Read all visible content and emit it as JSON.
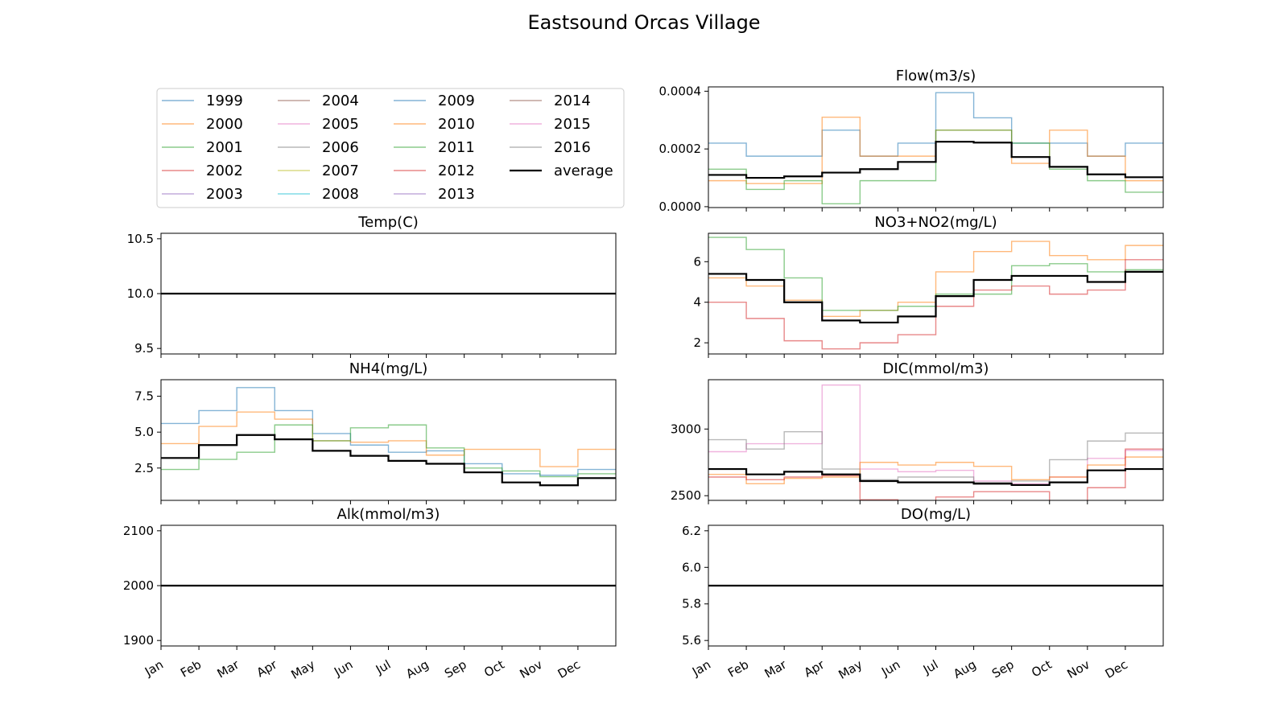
{
  "figure": {
    "title": "Eastsound Orcas Village"
  },
  "legend": {
    "entries": [
      {
        "name": "1999",
        "color": "#1f77b4"
      },
      {
        "name": "2000",
        "color": "#ff7f0e"
      },
      {
        "name": "2001",
        "color": "#2ca02c"
      },
      {
        "name": "2002",
        "color": "#d62728"
      },
      {
        "name": "2003",
        "color": "#9467bd"
      },
      {
        "name": "2004",
        "color": "#8c564b"
      },
      {
        "name": "2005",
        "color": "#e377c2"
      },
      {
        "name": "2006",
        "color": "#7f7f7f"
      },
      {
        "name": "2007",
        "color": "#bcbd22"
      },
      {
        "name": "2008",
        "color": "#17becf"
      },
      {
        "name": "2009",
        "color": "#1f77b4"
      },
      {
        "name": "2010",
        "color": "#ff7f0e"
      },
      {
        "name": "2011",
        "color": "#2ca02c"
      },
      {
        "name": "2012",
        "color": "#d62728"
      },
      {
        "name": "2013",
        "color": "#9467bd"
      },
      {
        "name": "2014",
        "color": "#8c564b"
      },
      {
        "name": "2015",
        "color": "#e377c2"
      },
      {
        "name": "2016",
        "color": "#7f7f7f"
      },
      {
        "name": "average",
        "color": "#000000"
      }
    ]
  },
  "chart_data": [
    {
      "type": "line",
      "step": "post",
      "title": "Temp(C)",
      "categories": [
        "Jan",
        "Feb",
        "Mar",
        "Apr",
        "May",
        "Jun",
        "Jul",
        "Aug",
        "Sep",
        "Oct",
        "Nov",
        "Dec"
      ],
      "ylim": [
        9.45,
        10.55
      ],
      "yticks": [
        9.5,
        10.0,
        10.5
      ],
      "ytick_labels": [
        "9.5",
        "10.0",
        "10.5"
      ],
      "x_labels_visible": false,
      "constant": 10.0,
      "average": [
        10,
        10,
        10,
        10,
        10,
        10,
        10,
        10,
        10,
        10,
        10,
        10
      ]
    },
    {
      "type": "line",
      "step": "post",
      "title": "Flow(m3/s)",
      "categories": [
        "Jan",
        "Feb",
        "Mar",
        "Apr",
        "May",
        "Jun",
        "Jul",
        "Aug",
        "Sep",
        "Oct",
        "Nov",
        "Dec"
      ],
      "ylim": [
        -3e-06,
        0.000415
      ],
      "yticks": [
        0.0,
        0.0002,
        0.0004
      ],
      "ytick_labels": [
        "0.0000",
        "0.0002",
        "0.0004"
      ],
      "x_labels_visible": false,
      "average": [
        0.00011,
        0.0001,
        0.000105,
        0.000118,
        0.00013,
        0.000155,
        0.000225,
        0.000222,
        0.000172,
        0.000138,
        0.000112,
        0.000102
      ],
      "series": [
        {
          "name": "1999",
          "values": [
            0.00022,
            0.000175,
            0.000175,
            0.000265,
            0.000175,
            0.00022,
            0.000395,
            0.000308,
            0.00022,
            0.00022,
            0.000175,
            0.00022
          ]
        },
        {
          "name": "2000",
          "values": [
            9e-05,
            8e-05,
            8e-05,
            0.00031,
            0.000175,
            0.000175,
            0.000265,
            0.000265,
            0.00015,
            0.000265,
            0.000175,
            9e-05
          ]
        },
        {
          "name": "2001",
          "values": [
            0.00013,
            6e-05,
            9e-05,
            1e-05,
            9e-05,
            9e-05,
            0.000265,
            0.000265,
            0.00022,
            0.00013,
            9e-05,
            5e-05
          ]
        }
      ]
    },
    {
      "type": "line",
      "step": "post",
      "title": "NH4(mg/L)",
      "categories": [
        "Jan",
        "Feb",
        "Mar",
        "Apr",
        "May",
        "Jun",
        "Jul",
        "Aug",
        "Sep",
        "Oct",
        "Nov",
        "Dec"
      ],
      "ylim": [
        0.25,
        8.65
      ],
      "yticks": [
        2.5,
        5.0,
        7.5
      ],
      "ytick_labels": [
        "2.5",
        "5.0",
        "7.5"
      ],
      "x_labels_visible": false,
      "average": [
        3.2,
        4.1,
        4.8,
        4.5,
        3.7,
        3.35,
        3.0,
        2.8,
        2.2,
        1.5,
        1.3,
        1.8
      ],
      "series": [
        {
          "name": "1999",
          "values": [
            5.6,
            6.5,
            8.1,
            6.5,
            4.9,
            4.1,
            3.6,
            3.7,
            2.8,
            2.1,
            2.0,
            2.4
          ]
        },
        {
          "name": "2000",
          "values": [
            4.2,
            5.4,
            6.4,
            5.9,
            4.4,
            4.3,
            4.4,
            3.4,
            3.8,
            3.8,
            2.6,
            3.8
          ]
        },
        {
          "name": "2001",
          "values": [
            2.4,
            3.1,
            3.6,
            5.5,
            4.4,
            5.3,
            5.5,
            3.9,
            2.5,
            2.3,
            1.9,
            2.1
          ]
        }
      ]
    },
    {
      "type": "line",
      "step": "post",
      "title": "NO3+NO2(mg/L)",
      "categories": [
        "Jan",
        "Feb",
        "Mar",
        "Apr",
        "May",
        "Jun",
        "Jul",
        "Aug",
        "Sep",
        "Oct",
        "Nov",
        "Dec"
      ],
      "ylim": [
        1.45,
        7.4
      ],
      "yticks": [
        2,
        4,
        6
      ],
      "ytick_labels": [
        "2",
        "4",
        "6"
      ],
      "x_labels_visible": false,
      "average": [
        5.4,
        5.1,
        4.0,
        3.1,
        3.0,
        3.3,
        4.3,
        5.1,
        5.3,
        5.3,
        5.0,
        5.5
      ],
      "series": [
        {
          "name": "2000",
          "values": [
            5.2,
            4.8,
            4.1,
            3.3,
            3.6,
            4.0,
            5.5,
            6.5,
            7.0,
            6.3,
            6.1,
            6.8
          ]
        },
        {
          "name": "2001",
          "values": [
            7.2,
            6.6,
            5.2,
            3.6,
            3.6,
            3.8,
            4.4,
            4.4,
            5.8,
            5.9,
            5.5,
            5.6
          ]
        },
        {
          "name": "2002",
          "values": [
            4.0,
            3.2,
            2.1,
            1.7,
            2.0,
            2.4,
            3.8,
            4.6,
            4.8,
            4.4,
            4.6,
            6.1
          ]
        }
      ]
    },
    {
      "type": "line",
      "step": "post",
      "title": "DIC(mmol/m3)",
      "categories": [
        "Jan",
        "Feb",
        "Mar",
        "Apr",
        "May",
        "Jun",
        "Jul",
        "Aug",
        "Sep",
        "Oct",
        "Nov",
        "Dec"
      ],
      "ylim": [
        2465,
        3370
      ],
      "yticks": [
        2500,
        3000
      ],
      "ytick_labels": [
        "2500",
        "3000"
      ],
      "x_labels_visible": false,
      "average": [
        2700,
        2660,
        2680,
        2660,
        2610,
        2600,
        2600,
        2590,
        2580,
        2600,
        2690,
        2700
      ],
      "series": [
        {
          "name": "2005",
          "values": [
            2830,
            2890,
            2890,
            3330,
            2700,
            2680,
            2690,
            2610,
            2590,
            2640,
            2780,
            2840
          ]
        },
        {
          "name": "2006",
          "values": [
            2920,
            2850,
            2980,
            2700,
            2620,
            2640,
            2640,
            2600,
            2610,
            2770,
            2910,
            2970
          ]
        },
        {
          "name": "2000",
          "values": [
            2660,
            2590,
            2630,
            2640,
            2750,
            2730,
            2750,
            2720,
            2620,
            2640,
            2730,
            2790
          ]
        },
        {
          "name": "2002",
          "values": [
            2640,
            2620,
            2640,
            2650,
            2470,
            2440,
            2490,
            2530,
            2530,
            2460,
            2560,
            2850
          ]
        }
      ]
    },
    {
      "type": "line",
      "step": "post",
      "title": "Alk(mmol/m3)",
      "categories": [
        "Jan",
        "Feb",
        "Mar",
        "Apr",
        "May",
        "Jun",
        "Jul",
        "Aug",
        "Sep",
        "Oct",
        "Nov",
        "Dec"
      ],
      "ylim": [
        1890,
        2110
      ],
      "yticks": [
        1900,
        2000,
        2100
      ],
      "ytick_labels": [
        "1900",
        "2000",
        "2100"
      ],
      "x_labels_visible": true,
      "constant": 2000,
      "average": [
        2000,
        2000,
        2000,
        2000,
        2000,
        2000,
        2000,
        2000,
        2000,
        2000,
        2000,
        2000
      ]
    },
    {
      "type": "line",
      "step": "post",
      "title": "DO(mg/L)",
      "categories": [
        "Jan",
        "Feb",
        "Mar",
        "Apr",
        "May",
        "Jun",
        "Jul",
        "Aug",
        "Sep",
        "Oct",
        "Nov",
        "Dec"
      ],
      "ylim": [
        5.57,
        6.23
      ],
      "yticks": [
        5.6,
        5.8,
        6.0,
        6.2
      ],
      "ytick_labels": [
        "5.6",
        "5.8",
        "6.0",
        "6.2"
      ],
      "x_labels_visible": true,
      "constant": 5.9,
      "average": [
        5.9,
        5.9,
        5.9,
        5.9,
        5.9,
        5.9,
        5.9,
        5.9,
        5.9,
        5.9,
        5.9,
        5.9
      ]
    }
  ]
}
